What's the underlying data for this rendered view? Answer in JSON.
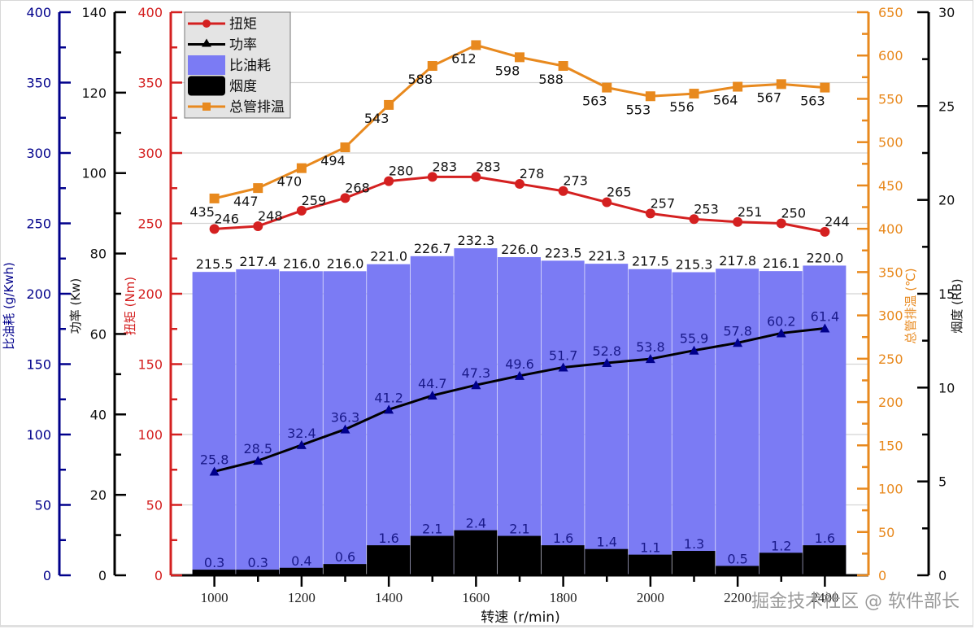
{
  "chart_data": {
    "type": "bar+line",
    "title": "",
    "xlabel": "转速 (r/min)",
    "x": [
      1000,
      1100,
      1200,
      1300,
      1400,
      1500,
      1600,
      1700,
      1800,
      1900,
      2000,
      2100,
      2200,
      2300,
      2400
    ],
    "x_ticks": [
      1000,
      1200,
      1400,
      1600,
      1800,
      2000,
      2200,
      2400
    ],
    "x_tick_labels": [
      "1000",
      "1200",
      "1400",
      "1600",
      "1800",
      "2000",
      "2200",
      "2400"
    ],
    "xlim": [
      900,
      2500
    ],
    "grid": "horizontal",
    "legend_position": "top-left",
    "legend": [
      "扭矩",
      "功率",
      "比油耗",
      "烟度",
      "总管排温"
    ],
    "axes": [
      {
        "id": "bsfc",
        "label": "比油耗 (g/Kwh)",
        "side": "left-outer",
        "ylim": [
          0,
          400
        ],
        "ticks": [
          0,
          50,
          100,
          150,
          200,
          250,
          300,
          350,
          400
        ],
        "color": "#00008b"
      },
      {
        "id": "power",
        "label": "功率 (Kw)",
        "side": "left-middle",
        "ylim": [
          0,
          140
        ],
        "ticks": [
          0,
          20,
          40,
          60,
          80,
          100,
          120,
          140
        ],
        "color": "#000000"
      },
      {
        "id": "torque",
        "label": "扭矩 (Nm)",
        "side": "left-inner",
        "ylim": [
          0,
          400
        ],
        "ticks": [
          0,
          50,
          100,
          150,
          200,
          250,
          300,
          350,
          400
        ],
        "color": "#d42020"
      },
      {
        "id": "exhaust",
        "label": "总管排温 (℃)",
        "side": "right-inner",
        "ylim": [
          0,
          650
        ],
        "ticks": [
          0,
          50,
          100,
          150,
          200,
          250,
          300,
          350,
          400,
          450,
          500,
          550,
          600,
          650
        ],
        "color": "#e8891e"
      },
      {
        "id": "smoke",
        "label": "烟度 (RB)",
        "side": "right-outer",
        "ylim": [
          0,
          30
        ],
        "ticks": [
          0,
          5,
          10,
          15,
          20,
          25,
          30
        ],
        "color": "#000000"
      }
    ],
    "series": [
      {
        "name": "比油耗",
        "type": "bar",
        "axis": "bsfc",
        "color": "#7b7bf4",
        "values": [
          215.5,
          217.4,
          216.0,
          216.0,
          221.0,
          226.7,
          232.3,
          226.0,
          223.5,
          221.3,
          217.5,
          215.3,
          217.8,
          216.1,
          220.0
        ],
        "labels": [
          "215.5",
          "217.4",
          "216.0",
          "216.0",
          "221.0",
          "226.7",
          "232.3",
          "226.0",
          "223.5",
          "221.3",
          "217.5",
          "215.3",
          "217.8",
          "216.1",
          "220.0"
        ]
      },
      {
        "name": "烟度",
        "type": "bar",
        "axis": "smoke",
        "color": "#000000",
        "values": [
          0.3,
          0.3,
          0.4,
          0.6,
          1.6,
          2.1,
          2.4,
          2.1,
          1.6,
          1.4,
          1.1,
          1.3,
          0.5,
          1.2,
          1.6
        ],
        "labels": [
          "0.3",
          "0.3",
          "0.4",
          "0.6",
          "1.6",
          "2.1",
          "2.4",
          "2.1",
          "1.6",
          "1.4",
          "1.1",
          "1.3",
          "0.5",
          "1.2",
          "1.6"
        ]
      },
      {
        "name": "扭矩",
        "type": "line",
        "marker": "circle",
        "axis": "torque",
        "color": "#d42020",
        "values": [
          246,
          248,
          259,
          268,
          280,
          283,
          283,
          278,
          273,
          265,
          257,
          253,
          251,
          250,
          244
        ],
        "labels": [
          "246",
          "248",
          "259",
          "268",
          "280",
          "283",
          "283",
          "278",
          "273",
          "265",
          "257",
          "253",
          "251",
          "250",
          "244"
        ]
      },
      {
        "name": "功率",
        "type": "line",
        "marker": "triangle",
        "axis": "power",
        "color": "#000000",
        "marker_color": "#00008b",
        "values": [
          25.8,
          28.5,
          32.4,
          36.3,
          41.2,
          44.7,
          47.3,
          49.6,
          51.7,
          52.8,
          53.8,
          55.9,
          57.8,
          60.2,
          61.4
        ],
        "labels": [
          "25.8",
          "28.5",
          "32.4",
          "36.3",
          "41.2",
          "44.7",
          "47.3",
          "49.6",
          "51.7",
          "52.8",
          "53.8",
          "55.9",
          "57.8",
          "60.2",
          "61.4"
        ]
      },
      {
        "name": "总管排温",
        "type": "line",
        "marker": "square",
        "axis": "exhaust",
        "color": "#e8891e",
        "values": [
          435,
          447,
          470,
          494,
          543,
          588,
          612,
          598,
          588,
          563,
          553,
          556,
          564,
          567,
          563
        ],
        "labels": [
          "435",
          "447",
          "470",
          "494",
          "543",
          "588",
          "612",
          "598",
          "588",
          "563",
          "553",
          "556",
          "564",
          "567",
          "563"
        ]
      }
    ]
  },
  "watermark": "掘金技术社区 @ 软件部长"
}
